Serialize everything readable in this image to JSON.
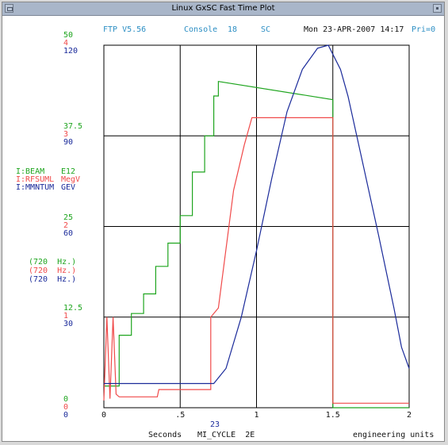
{
  "window": {
    "title": "Linux GxSC  Fast Time Plot"
  },
  "header": {
    "version": "FTP V5.56",
    "console_label": "Console",
    "console_number": "18",
    "mode": "SC",
    "datetime": "Mon 23-APR-2007 14:17",
    "priority": "Pri=0"
  },
  "left_scales": [
    {
      "green": "50",
      "red": "4",
      "blue": "120"
    },
    {
      "green": "37.5",
      "red": "3",
      "blue": "90"
    },
    {
      "green": "25",
      "red": "2",
      "blue": "60"
    },
    {
      "green": "12.5",
      "red": "1",
      "blue": "30"
    },
    {
      "green": "0",
      "red": "0",
      "blue": "0"
    }
  ],
  "legend": [
    {
      "device": "I:BEAM",
      "units": "E12",
      "rate": "(720  Hz.)",
      "color": "#1fa51f"
    },
    {
      "device": "I:RFSUML",
      "units": "MegV",
      "rate": "(720  Hz.)",
      "color": "#f04a4a"
    },
    {
      "device": "I:MMNTUM",
      "units": "GEV",
      "rate": "(720  Hz.)",
      "color": "#1a2a9a"
    }
  ],
  "footer": {
    "center_value": "23",
    "x_units": "Seconds",
    "event_label": "MI_CYCLE  2E",
    "units_mode": "engineering units"
  },
  "chart_data": {
    "type": "line",
    "xlim": [
      0,
      2
    ],
    "x_ticks": [
      "0",
      ".5",
      "1",
      "1.5",
      "2"
    ],
    "grid": true,
    "series": [
      {
        "name": "I:BEAM",
        "color": "#1fa51f",
        "ylim": [
          0,
          50
        ],
        "x": [
          0,
          0.1,
          0.1,
          0.18,
          0.18,
          0.26,
          0.26,
          0.34,
          0.34,
          0.42,
          0.42,
          0.5,
          0.5,
          0.58,
          0.58,
          0.66,
          0.66,
          0.72,
          0.72,
          0.75,
          0.75,
          1.5,
          1.5,
          2
        ],
        "y": [
          3,
          3,
          10,
          10,
          13,
          13,
          15.7,
          15.7,
          19.5,
          19.5,
          22.7,
          22.7,
          26.5,
          26.5,
          32.5,
          32.5,
          37.5,
          37.5,
          43,
          43,
          45,
          42.5,
          0,
          0
        ]
      },
      {
        "name": "I:RFSUML",
        "color": "#f04a4a",
        "ylim": [
          0,
          4
        ],
        "x": [
          0,
          0.02,
          0.04,
          0.06,
          0.08,
          0.1,
          0.35,
          0.36,
          0.7,
          0.7,
          0.75,
          0.85,
          0.92,
          0.97,
          1.0,
          1.5,
          1.5,
          2
        ],
        "y": [
          0.08,
          1.0,
          0.1,
          1.0,
          0.15,
          0.12,
          0.12,
          0.2,
          0.2,
          1.0,
          1.1,
          2.4,
          2.9,
          3.2,
          3.2,
          3.2,
          0.05,
          0.05
        ]
      },
      {
        "name": "I:MMNTUM",
        "color": "#1a2a9a",
        "ylim": [
          0,
          120
        ],
        "x": [
          0,
          0.72,
          0.8,
          0.9,
          1.0,
          1.1,
          1.2,
          1.3,
          1.4,
          1.47,
          1.55,
          1.6,
          1.7,
          1.8,
          1.9,
          1.95,
          2
        ],
        "y": [
          8,
          8,
          13,
          30,
          52,
          76,
          98,
          112,
          119,
          120,
          112,
          103,
          80,
          57,
          33,
          20,
          13
        ]
      }
    ]
  }
}
